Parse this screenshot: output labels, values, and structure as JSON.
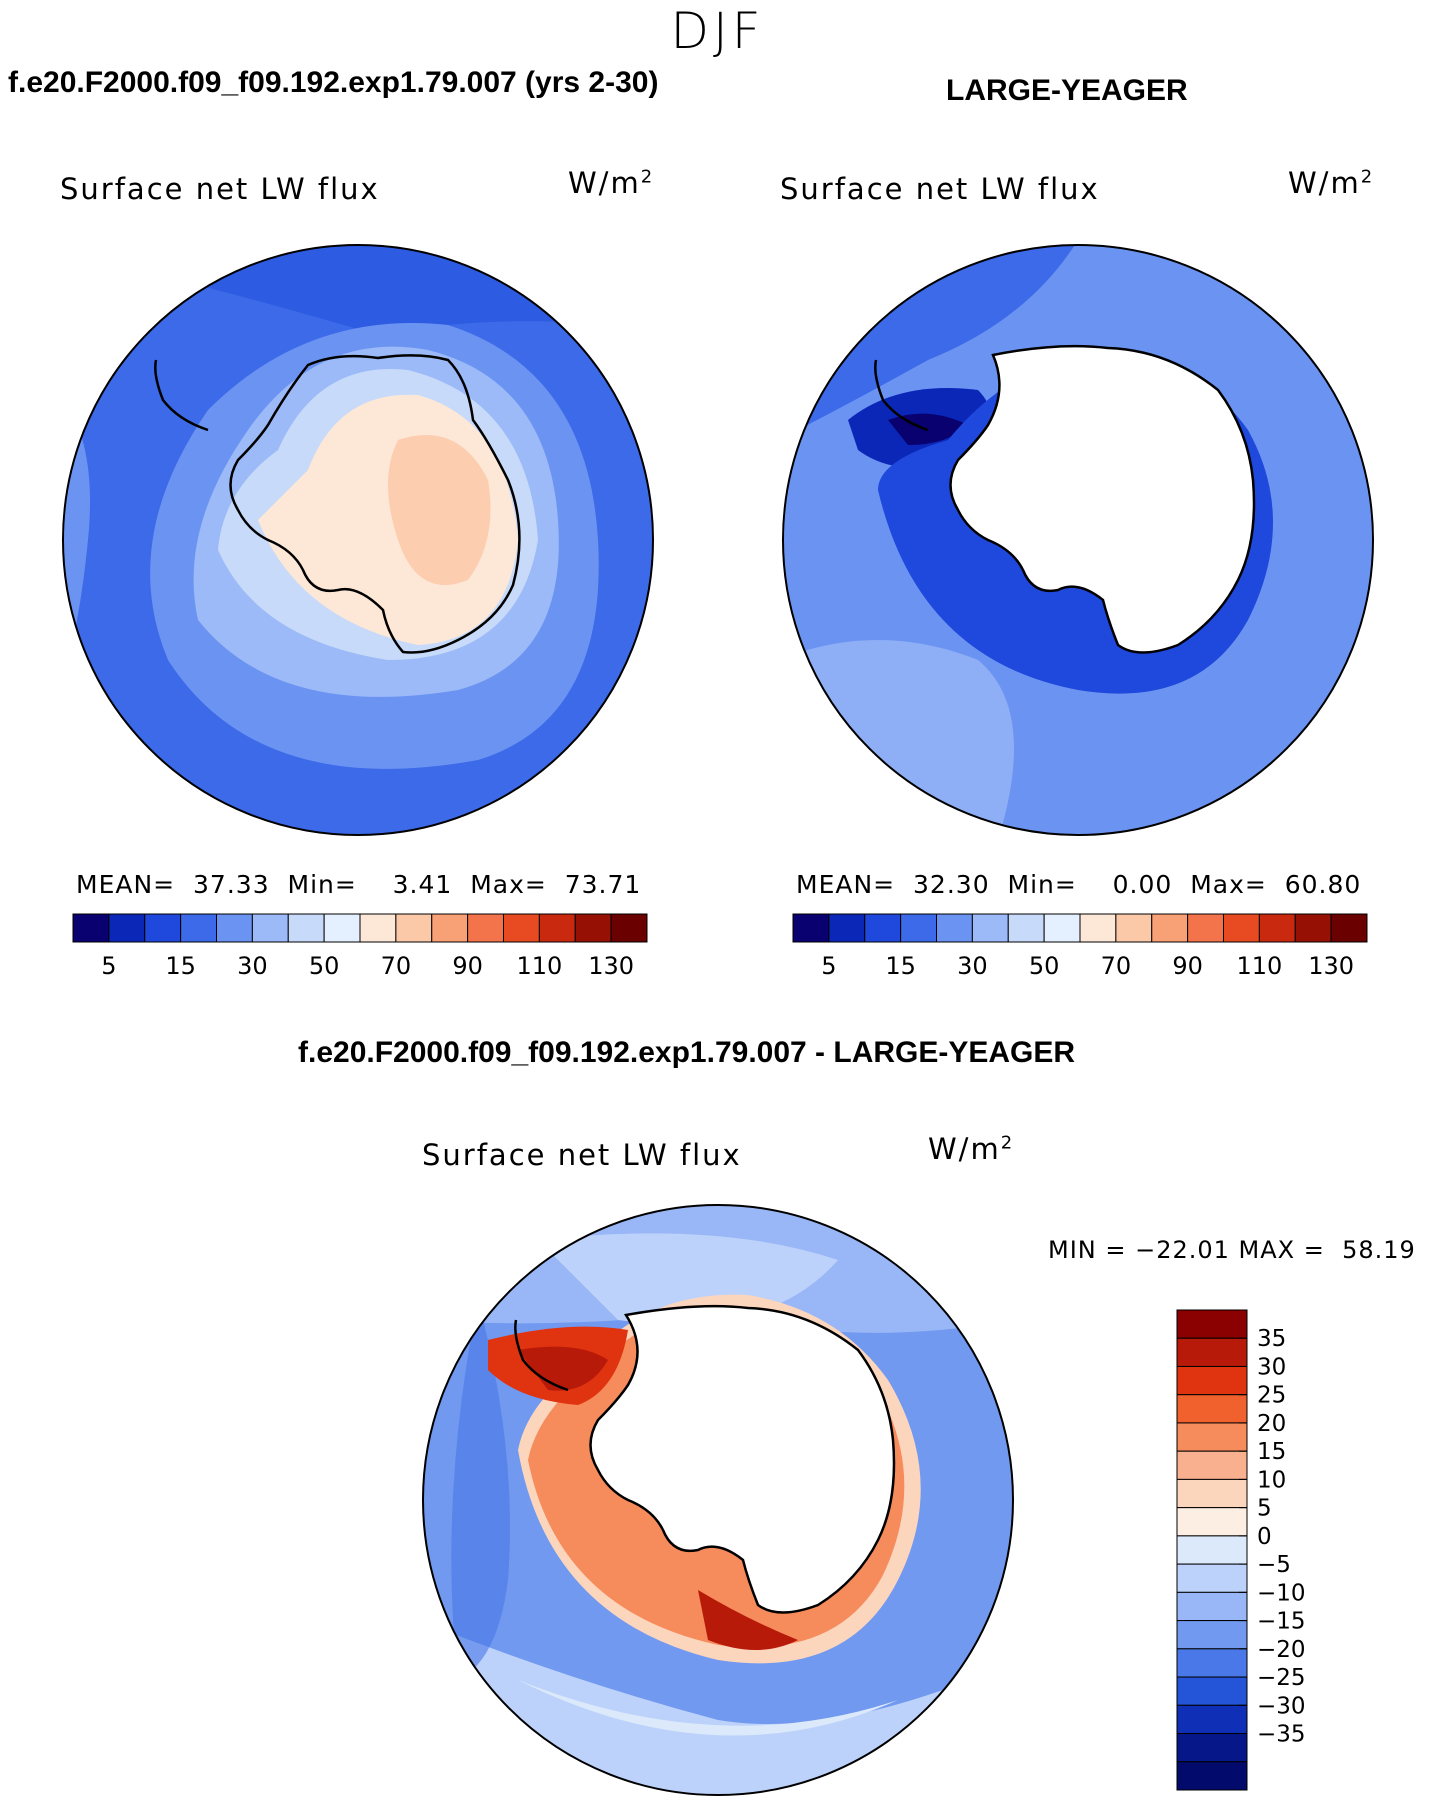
{
  "season": "DJF",
  "panels": {
    "test": {
      "case_title": "f.e20.F2000.f09_f09.192.exp1.79.007 (yrs 2-30)",
      "variable": "Surface net LW flux",
      "units": "W/m",
      "units_sup": "2",
      "stats": {
        "mean_label": "MEAN=",
        "mean": "37.33",
        "min_label": "Min=",
        "min": "3.41",
        "max_label": "Max=",
        "max": "73.71"
      }
    },
    "obs": {
      "case_title": "LARGE-YEAGER",
      "variable": "Surface net LW flux",
      "units": "W/m",
      "units_sup": "2",
      "stats": {
        "mean_label": "MEAN=",
        "mean": "32.30",
        "min_label": "Min=",
        "min": "0.00",
        "max_label": "Max=",
        "max": "60.80"
      }
    },
    "diff": {
      "case_title": "f.e20.F2000.f09_f09.192.exp1.79.007 - LARGE-YEAGER",
      "variable": "Surface net LW flux",
      "units": "W/m",
      "units_sup": "2",
      "minmax": "MIN = −22.01 MAX =  58.19"
    }
  },
  "chart_data": [
    {
      "type": "heatmap",
      "projection": "south polar stereographic",
      "panel": "test",
      "colorbar": {
        "orientation": "horizontal",
        "colors": [
          "#08016f",
          "#0b27b7",
          "#1f48dc",
          "#3c6ae8",
          "#6b94f2",
          "#9cbaf8",
          "#c7daf9",
          "#e4efff",
          "#fde8d8",
          "#fbc8a8",
          "#f8a176",
          "#f3744b",
          "#e84a22",
          "#c8290f",
          "#961104",
          "#6b0000"
        ],
        "tick_labels": [
          "5",
          "15",
          "30",
          "50",
          "70",
          "90",
          "110",
          "130"
        ],
        "tick_boundaries": [
          1,
          3,
          5,
          7,
          9,
          11,
          13,
          15
        ]
      },
      "field_summary": {
        "mean": 37.33,
        "min": 3.41,
        "max": 73.71
      }
    },
    {
      "type": "heatmap",
      "projection": "south polar stereographic",
      "panel": "obs",
      "colorbar": {
        "orientation": "horizontal",
        "colors": [
          "#08016f",
          "#0b27b7",
          "#1f48dc",
          "#3c6ae8",
          "#6b94f2",
          "#9cbaf8",
          "#c7daf9",
          "#e4efff",
          "#fde8d8",
          "#fbc8a8",
          "#f8a176",
          "#f3744b",
          "#e84a22",
          "#c8290f",
          "#961104",
          "#6b0000"
        ],
        "tick_labels": [
          "5",
          "15",
          "30",
          "50",
          "70",
          "90",
          "110",
          "130"
        ],
        "tick_boundaries": [
          1,
          3,
          5,
          7,
          9,
          11,
          13,
          15
        ]
      },
      "field_summary": {
        "mean": 32.3,
        "min": 0.0,
        "max": 60.8
      }
    },
    {
      "type": "heatmap",
      "projection": "south polar stereographic",
      "panel": "diff",
      "colorbar": {
        "orientation": "vertical",
        "colors": [
          "#8b0000",
          "#b81a0a",
          "#e03310",
          "#f0612e",
          "#f68b5c",
          "#f9b08e",
          "#fcd5bd",
          "#fdeee3",
          "#dbe9fb",
          "#bcd2fa",
          "#99b7f6",
          "#7199f0",
          "#4a78e8",
          "#2455d8",
          "#0f2fb6",
          "#06178a",
          "#020a6b"
        ],
        "tick_labels": [
          "35",
          "30",
          "25",
          "20",
          "15",
          "10",
          "5",
          "0",
          "−5",
          "−10",
          "−15",
          "−20",
          "−25",
          "−30",
          "−35"
        ]
      },
      "field_summary": {
        "min": -22.01,
        "max": 58.19
      }
    }
  ]
}
